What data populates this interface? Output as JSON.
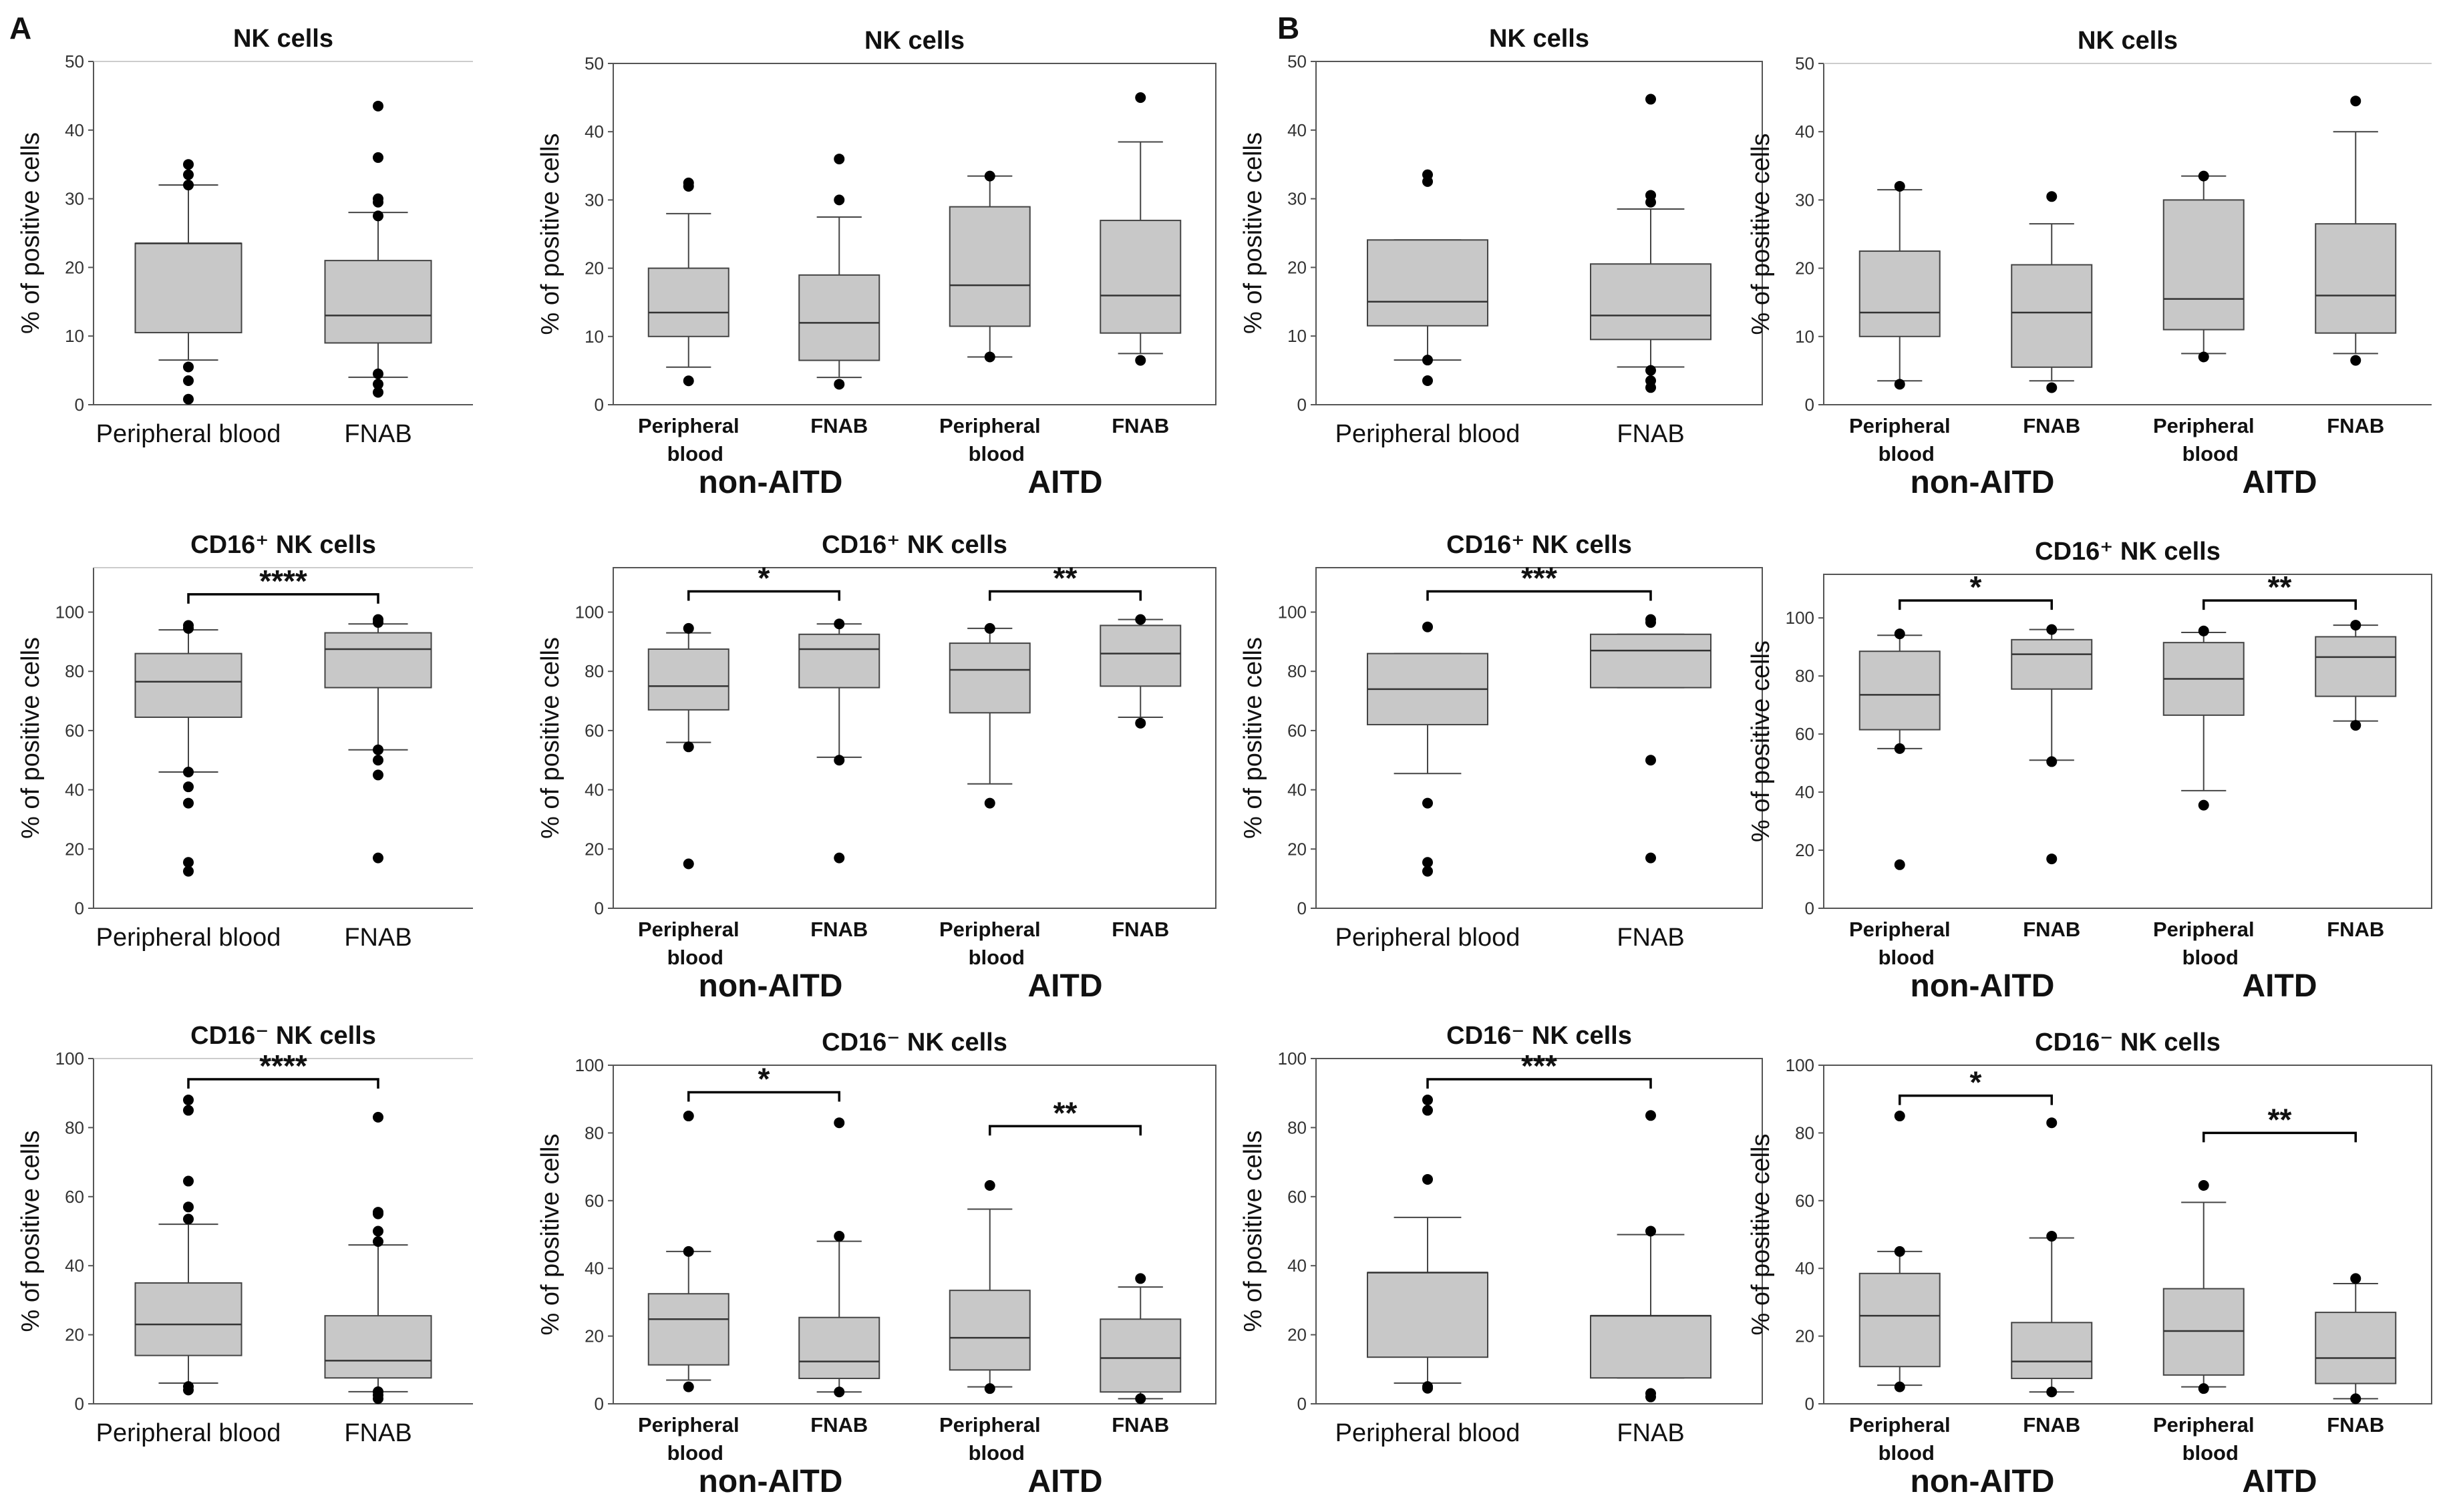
{
  "figure": {
    "panel_labels": [
      "A",
      "B"
    ]
  },
  "style": {
    "box_fill": "#c8c8c8",
    "box_stroke": "#444444",
    "outlier": "#000000",
    "axis": "#555555"
  },
  "chart_data": [
    {
      "id": "A-NK-overall",
      "panel": "A",
      "type": "box",
      "title": "NK cells",
      "ylabel": "% of positive cells",
      "ylim": [
        0,
        50
      ],
      "yticks": [
        0,
        10,
        20,
        30,
        40,
        50
      ],
      "layout": "simple",
      "categories": [
        "Peripheral blood",
        "FNAB"
      ],
      "boxes": [
        {
          "category": "Peripheral blood",
          "q1": 10.5,
          "median": 23.5,
          "q3": 23.5,
          "whisker_low": 6.5,
          "whisker_high": 32,
          "outliers": [
            0.8,
            3.5,
            5.5,
            32,
            33.5,
            35
          ]
        },
        {
          "category": "FNAB",
          "q1": 9,
          "median": 13,
          "q3": 21,
          "whisker_low": 4,
          "whisker_high": 28,
          "outliers": [
            1.8,
            3,
            4.5,
            27.5,
            29.5,
            30,
            36,
            43.5
          ]
        }
      ],
      "significance": []
    },
    {
      "id": "A-NK-groups",
      "panel": "A",
      "type": "box",
      "title": "NK cells",
      "ylabel": "% of positive cells",
      "ylim": [
        0,
        50
      ],
      "yticks": [
        0,
        10,
        20,
        30,
        40,
        50
      ],
      "layout": "grouped",
      "categories": [
        "Peripheral blood",
        "FNAB",
        "Peripheral blood",
        "FNAB"
      ],
      "groups": [
        "non-AITD",
        "AITD"
      ],
      "boxes": [
        {
          "category": "Peripheral blood",
          "group": "non-AITD",
          "q1": 10,
          "median": 13.5,
          "q3": 20,
          "whisker_low": 5.5,
          "whisker_high": 28,
          "outliers": [
            3.5,
            32,
            32.5
          ]
        },
        {
          "category": "FNAB",
          "group": "non-AITD",
          "q1": 6.5,
          "median": 12,
          "q3": 19,
          "whisker_low": 4,
          "whisker_high": 27.5,
          "outliers": [
            3,
            30,
            36
          ]
        },
        {
          "category": "Peripheral blood",
          "group": "AITD",
          "q1": 11.5,
          "median": 17.5,
          "q3": 29,
          "whisker_low": 7,
          "whisker_high": 33.5,
          "outliers": [
            7,
            33.5
          ]
        },
        {
          "category": "FNAB",
          "group": "AITD",
          "q1": 10.5,
          "median": 16,
          "q3": 27,
          "whisker_low": 7.5,
          "whisker_high": 38.5,
          "outliers": [
            6.5,
            45
          ]
        }
      ],
      "significance": []
    },
    {
      "id": "B-NK-overall",
      "panel": "B",
      "type": "box",
      "title": "NK cells",
      "ylabel": "% of positive cells",
      "ylim": [
        0,
        50
      ],
      "yticks": [
        0,
        10,
        20,
        30,
        40,
        50
      ],
      "layout": "simple",
      "categories": [
        "Peripheral blood",
        "FNAB"
      ],
      "boxes": [
        {
          "category": "Peripheral blood",
          "q1": 11.5,
          "median": 15,
          "q3": 24,
          "whisker_low": 6.5,
          "whisker_high": 24,
          "outliers": [
            3.5,
            6.5,
            32.5,
            33.5
          ]
        },
        {
          "category": "FNAB",
          "q1": 9.5,
          "median": 13,
          "q3": 20.5,
          "whisker_low": 5.5,
          "whisker_high": 28.5,
          "outliers": [
            2.5,
            3.5,
            5,
            29.5,
            30.5,
            44.5
          ]
        }
      ],
      "significance": []
    },
    {
      "id": "B-NK-groups",
      "panel": "B",
      "type": "box",
      "title": "NK cells",
      "ylabel": "% of positive cells",
      "ylim": [
        0,
        50
      ],
      "yticks": [
        0,
        10,
        20,
        30,
        40,
        50
      ],
      "layout": "grouped",
      "categories": [
        "Peripheral blood",
        "FNAB",
        "Peripheral blood",
        "FNAB"
      ],
      "groups": [
        "non-AITD",
        "AITD"
      ],
      "boxes": [
        {
          "category": "Peripheral blood",
          "group": "non-AITD",
          "q1": 10,
          "median": 13.5,
          "q3": 22.5,
          "whisker_low": 3.5,
          "whisker_high": 31.5,
          "outliers": [
            3,
            32
          ]
        },
        {
          "category": "FNAB",
          "group": "non-AITD",
          "q1": 5.5,
          "median": 13.5,
          "q3": 20.5,
          "whisker_low": 3.5,
          "whisker_high": 26.5,
          "outliers": [
            2.5,
            30.5
          ]
        },
        {
          "category": "Peripheral blood",
          "group": "AITD",
          "q1": 11,
          "median": 15.5,
          "q3": 30,
          "whisker_low": 7.5,
          "whisker_high": 33.5,
          "outliers": [
            7,
            33.5
          ]
        },
        {
          "category": "FNAB",
          "group": "AITD",
          "q1": 10.5,
          "median": 16,
          "q3": 26.5,
          "whisker_low": 7.5,
          "whisker_high": 40,
          "outliers": [
            6.5,
            44.5
          ]
        }
      ],
      "significance": []
    },
    {
      "id": "A-CD16pos-overall",
      "panel": "A",
      "type": "box",
      "title": "CD16⁺ NK cells",
      "ylabel": "% of positive cells",
      "ylim": [
        0,
        115
      ],
      "yticks": [
        0,
        20,
        40,
        60,
        80,
        100
      ],
      "layout": "simple",
      "categories": [
        "Peripheral blood",
        "FNAB"
      ],
      "boxes": [
        {
          "category": "Peripheral blood",
          "q1": 64.5,
          "median": 76.5,
          "q3": 86,
          "whisker_low": 46,
          "whisker_high": 94,
          "outliers": [
            12.5,
            15.5,
            35.5,
            41,
            46,
            94.5,
            95.5
          ]
        },
        {
          "category": "FNAB",
          "q1": 74.5,
          "median": 87.5,
          "q3": 93,
          "whisker_low": 53.5,
          "whisker_high": 96,
          "outliers": [
            17,
            45,
            50,
            53.5,
            96.5,
            97.5
          ]
        }
      ],
      "significance": [
        {
          "from": 0,
          "to": 1,
          "label": "****",
          "y": 106
        }
      ]
    },
    {
      "id": "A-CD16pos-groups",
      "panel": "A",
      "type": "box",
      "title": "CD16⁺ NK cells",
      "ylabel": "% of positive cells",
      "ylim": [
        0,
        115
      ],
      "yticks": [
        0,
        20,
        40,
        60,
        80,
        100
      ],
      "layout": "grouped",
      "categories": [
        "Peripheral blood",
        "FNAB",
        "Peripheral blood",
        "FNAB"
      ],
      "groups": [
        "non-AITD",
        "AITD"
      ],
      "boxes": [
        {
          "category": "Peripheral blood",
          "group": "non-AITD",
          "q1": 67,
          "median": 75,
          "q3": 87.5,
          "whisker_low": 56,
          "whisker_high": 93,
          "outliers": [
            15,
            54.5,
            94.5
          ]
        },
        {
          "category": "FNAB",
          "group": "non-AITD",
          "q1": 74.5,
          "median": 87.5,
          "q3": 92.5,
          "whisker_low": 51,
          "whisker_high": 96,
          "outliers": [
            17,
            50,
            96
          ]
        },
        {
          "category": "Peripheral blood",
          "group": "AITD",
          "q1": 66,
          "median": 80.5,
          "q3": 89.5,
          "whisker_low": 42,
          "whisker_high": 94.5,
          "outliers": [
            35.5,
            94.5
          ]
        },
        {
          "category": "FNAB",
          "group": "AITD",
          "q1": 75,
          "median": 86,
          "q3": 95.5,
          "whisker_low": 64.5,
          "whisker_high": 97.5,
          "outliers": [
            62.5,
            97.5
          ]
        }
      ],
      "significance": [
        {
          "from": 0,
          "to": 1,
          "label": "*",
          "y": 107
        },
        {
          "from": 2,
          "to": 3,
          "label": "**",
          "y": 107
        }
      ]
    },
    {
      "id": "B-CD16pos-overall",
      "panel": "B",
      "type": "box",
      "title": "CD16⁺ NK cells",
      "ylabel": "% of positive cells",
      "ylim": [
        0,
        115
      ],
      "yticks": [
        0,
        20,
        40,
        60,
        80,
        100
      ],
      "layout": "simple",
      "categories": [
        "Peripheral blood",
        "FNAB"
      ],
      "boxes": [
        {
          "category": "Peripheral blood",
          "q1": 62,
          "median": 74,
          "q3": 86,
          "whisker_low": 45.5,
          "whisker_high": 86,
          "outliers": [
            12.5,
            15.5,
            35.5,
            95
          ]
        },
        {
          "category": "FNAB",
          "q1": 74.5,
          "median": 87,
          "q3": 92.5,
          "whisker_low": 74.5,
          "whisker_high": 92.5,
          "outliers": [
            17,
            50,
            96.5,
            97.5
          ]
        }
      ],
      "significance": [
        {
          "from": 0,
          "to": 1,
          "label": "***",
          "y": 107
        }
      ]
    },
    {
      "id": "B-CD16pos-groups",
      "panel": "B",
      "type": "box",
      "title": "CD16⁺ NK cells",
      "ylabel": "% of positive cells",
      "ylim": [
        0,
        115
      ],
      "yticks": [
        0,
        20,
        40,
        60,
        80,
        100
      ],
      "layout": "grouped",
      "categories": [
        "Peripheral blood",
        "FNAB",
        "Peripheral blood",
        "FNAB"
      ],
      "groups": [
        "non-AITD",
        "AITD"
      ],
      "boxes": [
        {
          "category": "Peripheral blood",
          "group": "non-AITD",
          "q1": 61.5,
          "median": 73.5,
          "q3": 88.5,
          "whisker_low": 55,
          "whisker_high": 94,
          "outliers": [
            15,
            55,
            94.5
          ]
        },
        {
          "category": "FNAB",
          "group": "non-AITD",
          "q1": 75.5,
          "median": 87.5,
          "q3": 92.5,
          "whisker_low": 51,
          "whisker_high": 96,
          "outliers": [
            17,
            50.5,
            96
          ]
        },
        {
          "category": "Peripheral blood",
          "group": "AITD",
          "q1": 66.5,
          "median": 79,
          "q3": 91.5,
          "whisker_low": 40.5,
          "whisker_high": 95,
          "outliers": [
            35.5,
            95.5
          ]
        },
        {
          "category": "FNAB",
          "group": "AITD",
          "q1": 73,
          "median": 86.5,
          "q3": 93.5,
          "whisker_low": 64.5,
          "whisker_high": 97.5,
          "outliers": [
            63,
            97.5
          ]
        }
      ],
      "significance": [
        {
          "from": 0,
          "to": 1,
          "label": "*",
          "y": 106
        },
        {
          "from": 2,
          "to": 3,
          "label": "**",
          "y": 106
        }
      ]
    },
    {
      "id": "A-CD16neg-overall",
      "panel": "A",
      "type": "box",
      "title": "CD16⁻ NK cells",
      "ylabel": "% of positive cells",
      "ylim": [
        0,
        100
      ],
      "yticks": [
        0,
        20,
        40,
        60,
        80,
        100
      ],
      "layout": "simple",
      "categories": [
        "Peripheral blood",
        "FNAB"
      ],
      "boxes": [
        {
          "category": "Peripheral blood",
          "q1": 14,
          "median": 23,
          "q3": 35,
          "whisker_low": 6,
          "whisker_high": 52,
          "outliers": [
            4,
            5,
            53.5,
            57,
            64.5,
            85,
            88
          ]
        },
        {
          "category": "FNAB",
          "q1": 7.5,
          "median": 12.5,
          "q3": 25.5,
          "whisker_low": 3.5,
          "whisker_high": 46,
          "outliers": [
            1.5,
            2.5,
            3.5,
            47,
            50,
            55,
            55.5,
            83
          ]
        }
      ],
      "significance": [
        {
          "from": 0,
          "to": 1,
          "label": "****",
          "y": 94
        }
      ]
    },
    {
      "id": "A-CD16neg-groups",
      "panel": "A",
      "type": "box",
      "title": "CD16⁻ NK cells",
      "ylabel": "% of positive cells",
      "ylim": [
        0,
        100
      ],
      "yticks": [
        0,
        20,
        40,
        60,
        80,
        100
      ],
      "layout": "grouped",
      "categories": [
        "Peripheral blood",
        "FNAB",
        "Peripheral blood",
        "FNAB"
      ],
      "groups": [
        "non-AITD",
        "AITD"
      ],
      "boxes": [
        {
          "category": "Peripheral blood",
          "group": "non-AITD",
          "q1": 11.5,
          "median": 25,
          "q3": 32.5,
          "whisker_low": 7,
          "whisker_high": 45,
          "outliers": [
            5,
            45,
            85
          ]
        },
        {
          "category": "FNAB",
          "group": "non-AITD",
          "q1": 7.5,
          "median": 12.5,
          "q3": 25.5,
          "whisker_low": 3.5,
          "whisker_high": 48,
          "outliers": [
            3.5,
            49.5,
            83
          ]
        },
        {
          "category": "Peripheral blood",
          "group": "AITD",
          "q1": 10,
          "median": 19.5,
          "q3": 33.5,
          "whisker_low": 5,
          "whisker_high": 57.5,
          "outliers": [
            4.5,
            64.5
          ]
        },
        {
          "category": "FNAB",
          "group": "AITD",
          "q1": 3.5,
          "median": 13.5,
          "q3": 25,
          "whisker_low": 1.5,
          "whisker_high": 34.5,
          "outliers": [
            1.5,
            37
          ]
        }
      ],
      "significance": [
        {
          "from": 0,
          "to": 1,
          "label": "*",
          "y": 92
        },
        {
          "from": 2,
          "to": 3,
          "label": "**",
          "y": 82
        }
      ]
    },
    {
      "id": "B-CD16neg-overall",
      "panel": "B",
      "type": "box",
      "title": "CD16⁻ NK cells",
      "ylabel": "% of positive cells",
      "ylim": [
        0,
        100
      ],
      "yticks": [
        0,
        20,
        40,
        60,
        80,
        100
      ],
      "layout": "simple",
      "categories": [
        "Peripheral blood",
        "FNAB"
      ],
      "boxes": [
        {
          "category": "Peripheral blood",
          "q1": 13.5,
          "median": 38,
          "q3": 38,
          "whisker_low": 6,
          "whisker_high": 54,
          "outliers": [
            4.5,
            5,
            65,
            85,
            88
          ]
        },
        {
          "category": "FNAB",
          "q1": 7.5,
          "median": 25.5,
          "q3": 25.5,
          "whisker_low": 7.5,
          "whisker_high": 49,
          "outliers": [
            2,
            3,
            50,
            83.5
          ]
        }
      ],
      "significance": [
        {
          "from": 0,
          "to": 1,
          "label": "***",
          "y": 94
        }
      ]
    },
    {
      "id": "B-CD16neg-groups",
      "panel": "B",
      "type": "box",
      "title": "CD16⁻ NK cells",
      "ylabel": "% of positive cells",
      "ylim": [
        0,
        100
      ],
      "yticks": [
        0,
        20,
        40,
        60,
        80,
        100
      ],
      "layout": "grouped",
      "categories": [
        "Peripheral blood",
        "FNAB",
        "Peripheral blood",
        "FNAB"
      ],
      "groups": [
        "non-AITD",
        "AITD"
      ],
      "boxes": [
        {
          "category": "Peripheral blood",
          "group": "non-AITD",
          "q1": 11,
          "median": 26,
          "q3": 38.5,
          "whisker_low": 5.5,
          "whisker_high": 45,
          "outliers": [
            5,
            45,
            85
          ]
        },
        {
          "category": "FNAB",
          "group": "non-AITD",
          "q1": 7.5,
          "median": 12.5,
          "q3": 24,
          "whisker_low": 3.5,
          "whisker_high": 49,
          "outliers": [
            3.5,
            49.5,
            83
          ]
        },
        {
          "category": "Peripheral blood",
          "group": "AITD",
          "q1": 8.5,
          "median": 21.5,
          "q3": 34,
          "whisker_low": 5,
          "whisker_high": 59.5,
          "outliers": [
            4.5,
            64.5
          ]
        },
        {
          "category": "FNAB",
          "group": "AITD",
          "q1": 6,
          "median": 13.5,
          "q3": 27,
          "whisker_low": 1.5,
          "whisker_high": 35.5,
          "outliers": [
            1.5,
            37
          ]
        }
      ],
      "significance": [
        {
          "from": 0,
          "to": 1,
          "label": "*",
          "y": 91
        },
        {
          "from": 2,
          "to": 3,
          "label": "**",
          "y": 80
        }
      ]
    }
  ]
}
